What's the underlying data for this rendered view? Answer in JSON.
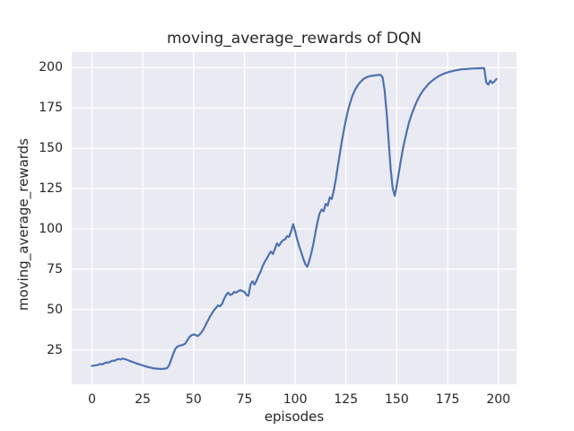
{
  "chart_data": {
    "type": "line",
    "title": "moving_average_rewards of DQN",
    "xlabel": "episodes",
    "ylabel": "moving_average_rewards",
    "x_ticks": [
      0,
      25,
      50,
      75,
      100,
      125,
      150,
      175,
      200
    ],
    "y_ticks": [
      25,
      50,
      75,
      100,
      125,
      150,
      175,
      200
    ],
    "xlim": [
      -9.95,
      208.95
    ],
    "ylim": [
      3.6,
      209.7
    ],
    "grid": true,
    "legend": "none",
    "line_color": "#4c72b0",
    "axes_background": "#eaeaf2",
    "grid_color": "#ffffff",
    "text_color": "#262626",
    "x_start": 0,
    "x_step": 1,
    "values": [
      15.0,
      15.2,
      15.4,
      15.7,
      16.2,
      16.0,
      16.5,
      17.2,
      17.0,
      17.6,
      18.3,
      18.1,
      18.8,
      19.3,
      19.0,
      19.6,
      19.3,
      18.9,
      18.4,
      17.9,
      17.4,
      17.0,
      16.5,
      16.1,
      15.7,
      15.3,
      14.9,
      14.5,
      14.2,
      13.9,
      13.6,
      13.4,
      13.3,
      13.2,
      13.1,
      13.2,
      13.4,
      13.7,
      15.5,
      19.0,
      22.5,
      25.5,
      27.0,
      27.5,
      27.8,
      28.2,
      29.0,
      31.0,
      33.0,
      34.0,
      34.5,
      34.2,
      33.5,
      34.5,
      36.0,
      38.0,
      40.5,
      43.0,
      45.5,
      47.5,
      49.5,
      51.0,
      52.5,
      52.0,
      53.5,
      56.5,
      59.0,
      60.5,
      59.0,
      59.5,
      61.0,
      60.5,
      61.5,
      62.0,
      61.5,
      61.0,
      59.0,
      58.5,
      65.5,
      67.5,
      65.5,
      68.0,
      71.0,
      73.5,
      77.0,
      79.5,
      81.5,
      84.0,
      86.0,
      84.5,
      87.5,
      91.0,
      89.5,
      91.5,
      93.0,
      93.5,
      95.5,
      95.0,
      98.5,
      103.0,
      98.5,
      93.5,
      89.0,
      85.5,
      81.5,
      78.0,
      76.5,
      80.5,
      85.5,
      91.0,
      98.0,
      104.5,
      109.5,
      112.0,
      111.0,
      115.5,
      114.5,
      119.5,
      118.5,
      124.0,
      131.0,
      139.0,
      147.0,
      154.5,
      161.5,
      168.0,
      173.5,
      178.0,
      182.0,
      185.0,
      187.5,
      189.5,
      191.0,
      192.3,
      193.3,
      194.0,
      194.5,
      194.8,
      195.0,
      195.2,
      195.4,
      195.5,
      195.6,
      194.0,
      186.0,
      172.0,
      154.0,
      137.0,
      125.0,
      120.5,
      127.0,
      135.0,
      142.5,
      149.5,
      155.5,
      161.0,
      166.0,
      170.0,
      173.5,
      176.5,
      179.5,
      182.0,
      184.0,
      186.0,
      187.5,
      189.0,
      190.5,
      191.5,
      192.5,
      193.5,
      194.3,
      195.0,
      195.6,
      196.2,
      196.7,
      197.1,
      197.5,
      197.8,
      198.1,
      198.4,
      198.6,
      198.8,
      199.0,
      199.1,
      199.2,
      199.3,
      199.4,
      199.5,
      199.5,
      199.6,
      199.6,
      199.7,
      199.7,
      199.7,
      191.0,
      189.5,
      192.0,
      190.5,
      191.5,
      193.0
    ]
  }
}
